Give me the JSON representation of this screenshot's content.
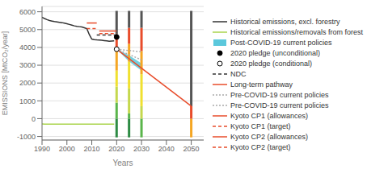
{
  "chart_data": {
    "type": "composed",
    "xlabel": "Years",
    "ylabel": "EMISSIONS [MtCO₂/year]",
    "xlim": [
      1990,
      2055
    ],
    "ylim": [
      -1200,
      6300
    ],
    "xticks": [
      1990,
      2000,
      2010,
      2020,
      2030,
      2040,
      2050
    ],
    "yticks": [
      -1000,
      0,
      1000,
      2000,
      3000,
      4000,
      5000,
      6000
    ],
    "grid": true,
    "legend": "right",
    "stacked": true,
    "series": [
      {
        "type": "bar",
        "color": "#2d8b44",
        "x": [
          2020,
          2025,
          2030,
          2050
        ],
        "values": [
          -1050,
          -1050,
          null,
          null
        ]
      },
      {
        "type": "bar",
        "color": "#5ab54b",
        "x": [
          2020,
          2025,
          2030,
          2050
        ],
        "values": [
          900,
          300,
          -1050,
          null
        ]
      },
      {
        "type": "bar",
        "color": "#c5d84e",
        "x": [
          2020,
          2025,
          2030,
          2050
        ],
        "values": [
          900,
          1400,
          700,
          null
        ]
      },
      {
        "type": "bar",
        "color": "#f0e030",
        "x": [
          2020,
          2025,
          2030,
          2050
        ],
        "values": [
          900,
          1500,
          1800,
          null
        ]
      },
      {
        "type": "bar",
        "color": "#f5a623",
        "x": [
          2020,
          2025,
          2030,
          2050
        ],
        "values": [
          1100,
          1000,
          1300,
          -1050
        ]
      },
      {
        "type": "bar",
        "color": "#e84c2b",
        "x": [
          2020,
          2025,
          2030,
          2050
        ],
        "values": [
          900,
          900,
          1300,
          700
        ]
      },
      {
        "type": "bar",
        "color": "#555555",
        "x": [
          2020,
          2025,
          2030,
          2050
        ],
        "values": [
          1350,
          950,
          950,
          5350
        ]
      },
      {
        "name": "Historical emissions, excl. forestry",
        "type": "line",
        "color": "#333333",
        "line_style": "solid",
        "x": [
          1990,
          1991,
          1992,
          1993,
          1994,
          1995,
          1996,
          1997,
          1998,
          1999,
          2000,
          2001,
          2002,
          2003,
          2004,
          2005,
          2006,
          2007,
          2008,
          2009,
          2010,
          2011,
          2012,
          2013,
          2014,
          2015,
          2016,
          2017,
          2018,
          2019
        ],
        "values": [
          5700,
          5620,
          5560,
          5510,
          5480,
          5450,
          5430,
          5410,
          5390,
          5360,
          5330,
          5290,
          5250,
          5210,
          5185,
          5165,
          5145,
          5105,
          5055,
          4720,
          4470,
          4440,
          4420,
          4410,
          4400,
          4385,
          4365,
          4345,
          4355,
          4365
        ]
      },
      {
        "name": "Historical emissions/removals from forest",
        "type": "line",
        "color": "#aad44c",
        "line_style": "solid",
        "x": [
          1990,
          1991,
          1992,
          1993,
          1994,
          1995,
          1996,
          1997,
          1998,
          1999,
          2000,
          2001,
          2002,
          2003,
          2004,
          2005,
          2006,
          2007,
          2008,
          2009,
          2010,
          2011,
          2012,
          2013,
          2014,
          2015,
          2016,
          2017,
          2018,
          2019
        ],
        "values": [
          -300,
          -305,
          -308,
          -308,
          -308,
          -308,
          -308,
          -308,
          -308,
          -308,
          -308,
          -308,
          -308,
          -308,
          -308,
          -308,
          -308,
          -308,
          -308,
          -308,
          -308,
          -308,
          -308,
          -308,
          -308,
          -308,
          -308,
          -308,
          -308,
          -308
        ]
      },
      {
        "name": "Post-COVID-19 current policies",
        "type": "area",
        "color": "#5bc8dc",
        "x": [
          2020,
          2025,
          2030
        ],
        "values": [
          3900,
          3550,
          3100
        ],
        "lower": [
          3900,
          3200,
          2700
        ]
      },
      {
        "name": "2020 pledge (unconditional)",
        "type": "scatter",
        "color": "#000000",
        "marker": "circle",
        "x": [
          2020
        ],
        "values": [
          4580
        ]
      },
      {
        "name": "2020 pledge (conditional)",
        "type": "scatter",
        "color": "#000000",
        "marker": "open_circle",
        "x": [
          2020
        ],
        "values": [
          3900
        ]
      },
      {
        "name": "NDC",
        "type": "line",
        "color": "#333333",
        "line_style": "dashed",
        "x": [
          2012,
          2020
        ],
        "values": [
          4700,
          4700
        ]
      },
      {
        "name": "Long-term pathway",
        "type": "line",
        "color": "#e84c2b",
        "line_style": "solid",
        "x": [
          2020,
          2050
        ],
        "values": [
          3900,
          700
        ]
      },
      {
        "name": "Pre-COVID-19 current policies",
        "type": "line",
        "color": "#aaaaaa",
        "line_style": "dotted",
        "x": [
          2020,
          2030
        ],
        "values": [
          3900,
          3750
        ]
      },
      {
        "name": "Pre-COVID-19 current policies",
        "type": "line",
        "color": "#aaaaaa",
        "line_style": "dotted",
        "x": [
          2020,
          2030
        ],
        "values": [
          3900,
          3300
        ]
      },
      {
        "name": "Kyoto CP1 (allowances)",
        "type": "line",
        "color": "#e84c2b",
        "line_style": "solid",
        "x": [
          2008,
          2012
        ],
        "values": [
          5370,
          5370
        ]
      },
      {
        "name": "Kyoto CP1 (target)",
        "type": "line",
        "color": "#e84c2b",
        "line_style": "dashed",
        "x": [
          2008,
          2012
        ],
        "values": [
          5060,
          5060
        ]
      },
      {
        "name": "Kyoto CP2 (allowances)",
        "type": "line",
        "color": "#e84c2b",
        "line_style": "solid",
        "x": [
          2013,
          2020
        ],
        "values": [
          4920,
          4920
        ]
      },
      {
        "name": "Kyoto CP2 (target)",
        "type": "line",
        "color": "#e84c2b",
        "line_style": "dashed",
        "x": [
          2013,
          2020
        ],
        "values": [
          4780,
          4780
        ]
      }
    ]
  }
}
